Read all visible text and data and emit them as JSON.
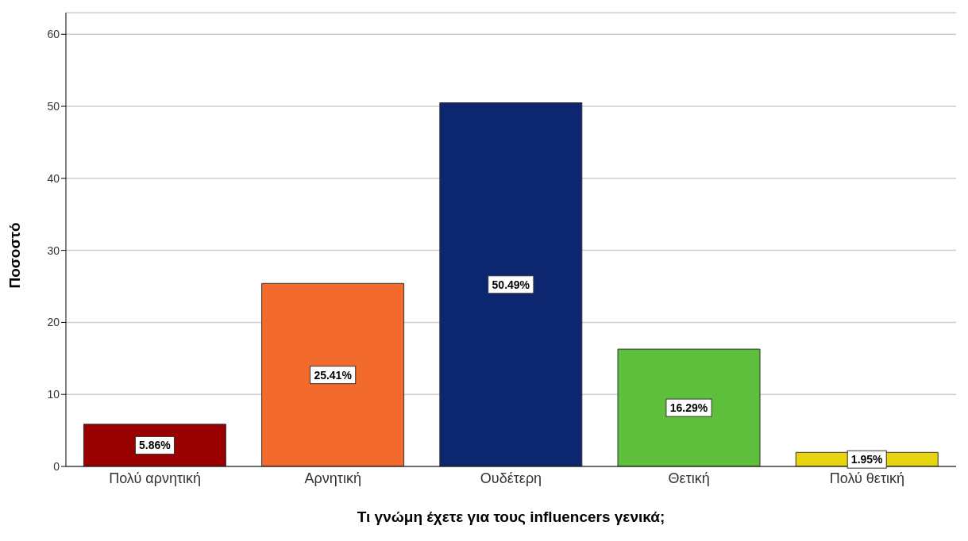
{
  "chart_data": {
    "type": "bar",
    "xlabel": "Τι γνώμη έχετε για τους influencers γενικά;",
    "ylabel": "Ποσοστό",
    "categories": [
      "Πολύ αρνητική",
      "Αρνητική",
      "Ουδέτερη",
      "Θετική",
      "Πολύ θετική"
    ],
    "values": [
      5.86,
      25.41,
      50.49,
      16.29,
      1.95
    ],
    "colors": [
      "#990000",
      "#f26a2c",
      "#0c2670",
      "#5dbf3b",
      "#e8d30f"
    ],
    "value_labels": [
      "5.86%",
      "25.41%",
      "50.49%",
      "16.29%",
      "1.95%"
    ],
    "ylim": [
      0,
      63
    ],
    "yticks": [
      0,
      10,
      20,
      30,
      40,
      50,
      60
    ],
    "grid": "y"
  }
}
